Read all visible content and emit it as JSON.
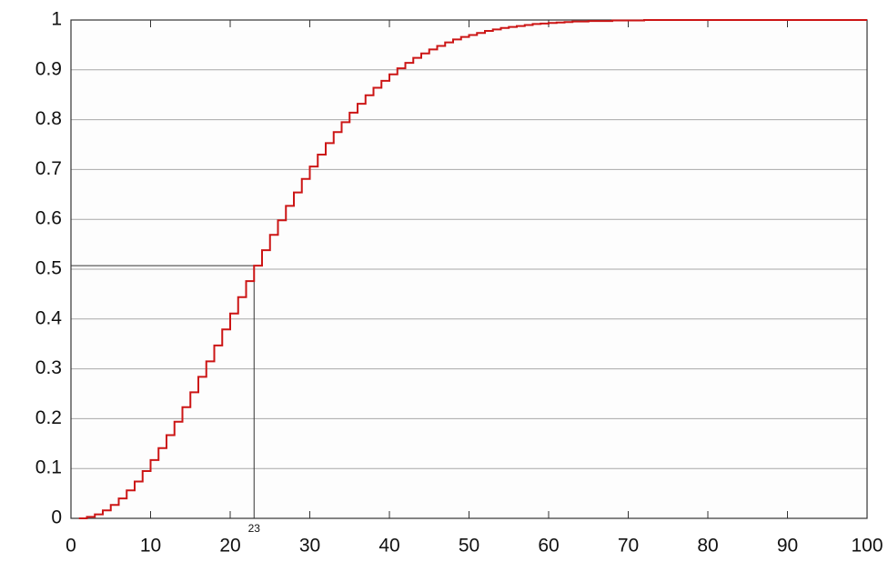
{
  "chart_data": {
    "type": "step",
    "color": "#cc1515",
    "grid": true,
    "xlim": [
      0,
      100
    ],
    "xticks": [
      0,
      10,
      20,
      30,
      40,
      50,
      60,
      70,
      80,
      90,
      100
    ],
    "ylim": [
      0,
      1
    ],
    "yticks": [
      0,
      0.1,
      0.2,
      0.3,
      0.4,
      0.5,
      0.6,
      0.7,
      0.8,
      0.9,
      1
    ],
    "marker": {
      "x": 23,
      "y": 0.507
    },
    "x": [
      1,
      2,
      3,
      4,
      5,
      6,
      7,
      8,
      9,
      10,
      11,
      12,
      13,
      14,
      15,
      16,
      17,
      18,
      19,
      20,
      21,
      22,
      23,
      24,
      25,
      26,
      27,
      28,
      29,
      30,
      31,
      32,
      33,
      34,
      35,
      36,
      37,
      38,
      39,
      40,
      41,
      42,
      43,
      44,
      45,
      46,
      47,
      48,
      49,
      50,
      51,
      52,
      53,
      54,
      55,
      56,
      57,
      58,
      59,
      60,
      61,
      62,
      63,
      64,
      65,
      66,
      67,
      68,
      69,
      70,
      71,
      72,
      73,
      74,
      75,
      76,
      77,
      78,
      79,
      80,
      81,
      82,
      83,
      84,
      85,
      86,
      87,
      88,
      89,
      90,
      91,
      92,
      93,
      94,
      95,
      96,
      97,
      98,
      99,
      100
    ],
    "values": [
      0,
      0.003,
      0.008,
      0.016,
      0.027,
      0.04,
      0.056,
      0.074,
      0.095,
      0.117,
      0.141,
      0.167,
      0.194,
      0.223,
      0.253,
      0.284,
      0.315,
      0.347,
      0.379,
      0.411,
      0.444,
      0.476,
      0.507,
      0.538,
      0.569,
      0.598,
      0.627,
      0.654,
      0.681,
      0.706,
      0.73,
      0.753,
      0.775,
      0.795,
      0.814,
      0.832,
      0.849,
      0.864,
      0.878,
      0.891,
      0.903,
      0.914,
      0.924,
      0.933,
      0.941,
      0.948,
      0.955,
      0.961,
      0.966,
      0.97,
      0.974,
      0.978,
      0.981,
      0.984,
      0.986,
      0.988,
      0.99,
      0.992,
      0.993,
      0.994,
      0.995,
      0.996,
      0.997,
      0.997,
      0.998,
      0.998,
      0.998,
      0.999,
      0.999,
      0.999,
      0.999,
      1,
      1,
      1,
      1,
      1,
      1,
      1,
      1,
      1,
      1,
      1,
      1,
      1,
      1,
      1,
      1,
      1,
      1,
      1,
      1,
      1,
      1,
      1,
      1,
      1,
      1,
      1,
      1,
      1
    ]
  }
}
